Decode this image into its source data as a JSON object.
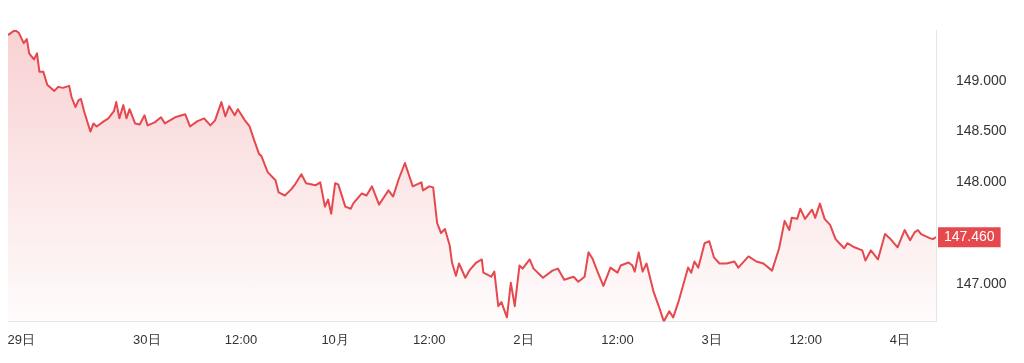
{
  "chart_data": {
    "type": "area",
    "color": "#e5484d",
    "x": [
      "--09-29T06:18",
      "--09-29T07:12",
      "--09-29T07:42",
      "--09-29T08:18",
      "--09-29T08:42",
      "--09-29T09:00",
      "--09-29T09:36",
      "--09-29T10:00",
      "--09-29T10:18",
      "--09-29T10:48",
      "--09-29T11:18",
      "--09-29T12:12",
      "--09-29T12:42",
      "--09-29T13:18",
      "--09-29T14:06",
      "--09-29T14:24",
      "--09-29T14:54",
      "--09-29T15:18",
      "--09-29T15:36",
      "--09-29T16:00",
      "--09-29T16:48",
      "--09-29T17:12",
      "--09-29T17:36",
      "--09-29T18:30",
      "--09-29T19:06",
      "--09-29T19:48",
      "--09-29T20:06",
      "--09-29T20:30",
      "--09-29T21:00",
      "--09-29T21:24",
      "--09-29T21:48",
      "--09-29T22:30",
      "--09-29T23:06",
      "--09-29T23:42",
      "--09-30T00:06",
      "--09-30T01:00",
      "--09-30T01:48",
      "--09-30T02:18",
      "--09-30T03:36",
      "--09-30T04:54",
      "--09-30T05:30",
      "--09-30T06:24",
      "--09-30T07:18",
      "--09-30T08:06",
      "--09-30T08:42",
      "--09-30T09:30",
      "--09-30T10:00",
      "--09-30T10:30",
      "--09-30T11:12",
      "--09-30T11:36",
      "--09-30T12:30",
      "--09-30T13:06",
      "--09-30T13:42",
      "--09-30T14:18",
      "--09-30T14:36",
      "--09-30T15:24",
      "--09-30T16:24",
      "--09-30T16:48",
      "--09-30T17:36",
      "--09-30T18:24",
      "--09-30T18:54",
      "--09-30T19:42",
      "--09-30T20:18",
      "--09-30T21:30",
      "--09-30T22:06",
      "--09-30T22:42",
      "--09-30T23:06",
      "--09-30T23:30",
      "--10-01T00:00",
      "--10-01T00:24",
      "--10-01T01:18",
      "--10-01T02:00",
      "--10-01T02:18",
      "--10-01T03:24",
      "--10-01T04:00",
      "--10-01T04:42",
      "--10-01T05:36",
      "--10-01T06:12",
      "--10-01T06:48",
      "--10-01T07:24",
      "--10-01T08:06",
      "--10-01T08:54",
      "--10-01T09:12",
      "--10-01T09:54",
      "--10-01T11:00",
      "--10-01T11:12",
      "--10-01T12:00",
      "--10-01T12:30",
      "--10-01T13:00",
      "--10-01T13:30",
      "--10-01T14:00",
      "--10-01T14:36",
      "--10-01T14:54",
      "--10-01T15:24",
      "--10-01T15:48",
      "--10-01T16:36",
      "--10-01T17:12",
      "--10-01T18:00",
      "--10-01T18:42",
      "--10-01T18:54",
      "--10-01T19:54",
      "--10-01T20:18",
      "--10-01T20:48",
      "--10-01T21:12",
      "--10-01T21:54",
      "--10-01T22:24",
      "--10-01T22:54",
      "--10-01T23:30",
      "--10-01T23:54",
      "--10-02T00:48",
      "--10-02T01:18",
      "--10-02T02:30",
      "--10-02T03:42",
      "--10-02T04:24",
      "--10-02T05:12",
      "--10-02T06:24",
      "--10-02T07:00",
      "--10-02T07:48",
      "--10-02T08:18",
      "--10-02T08:48",
      "--10-02T09:24",
      "--10-02T10:12",
      "--10-02T11:06",
      "--10-02T12:00",
      "--10-02T12:24",
      "--10-02T13:24",
      "--10-02T13:54",
      "--10-02T14:12",
      "--10-02T14:42",
      "--10-02T15:12",
      "--10-02T15:42",
      "--10-02T16:36",
      "--10-02T17:18",
      "--10-02T17:54",
      "--10-02T18:36",
      "--10-02T19:06",
      "--10-02T19:48",
      "--10-02T21:00",
      "--10-02T21:24",
      "--10-02T21:48",
      "--10-02T22:18",
      "--10-02T23:06",
      "--10-02T23:42",
      "--10-03T00:18",
      "--10-03T01:00",
      "--10-03T01:54",
      "--10-03T02:54",
      "--10-03T03:24",
      "--10-03T04:42",
      "--10-03T05:42",
      "--10-03T06:36",
      "--10-03T07:42",
      "--10-03T08:36",
      "--10-03T09:18",
      "--10-03T09:54",
      "--10-03T10:12",
      "--10-03T10:54",
      "--10-03T11:18",
      "--10-03T11:54",
      "--10-03T12:48",
      "--10-03T13:12",
      "--10-03T13:48",
      "--10-03T14:24",
      "--10-03T15:06",
      "--10-03T15:48",
      "--10-03T16:24",
      "--10-03T16:54",
      "--10-03T17:18",
      "--10-03T18:12",
      "--10-03T19:12",
      "--10-03T19:36",
      "--10-03T20:18",
      "--10-03T21:12",
      "--10-03T22:06",
      "--10-03T22:42",
      "--10-03T23:42",
      "--10-04T00:36",
      "--10-04T01:18",
      "--10-04T01:54",
      "--10-04T02:18",
      "--10-04T02:42",
      "--10-04T03:48",
      "--10-04T04:12",
      "--10-04T04:36"
    ],
    "values": [
      149.45,
      149.5,
      149.47,
      149.37,
      149.41,
      149.27,
      149.21,
      149.27,
      149.09,
      149.09,
      148.96,
      148.9,
      148.94,
      148.93,
      148.95,
      148.84,
      148.74,
      148.81,
      148.82,
      148.7,
      148.5,
      148.58,
      148.55,
      148.6,
      148.63,
      148.7,
      148.79,
      148.63,
      148.76,
      148.63,
      148.72,
      148.58,
      148.57,
      148.66,
      148.56,
      148.59,
      148.64,
      148.58,
      148.64,
      148.67,
      148.55,
      148.6,
      148.63,
      148.56,
      148.61,
      148.79,
      148.65,
      148.75,
      148.66,
      148.72,
      148.61,
      148.55,
      148.41,
      148.28,
      148.26,
      148.1,
      148.02,
      147.9,
      147.87,
      147.93,
      147.98,
      148.08,
      147.99,
      147.97,
      148.0,
      147.76,
      147.83,
      147.69,
      147.99,
      147.98,
      147.76,
      147.74,
      147.79,
      147.89,
      147.87,
      147.96,
      147.78,
      147.85,
      147.92,
      147.86,
      148.03,
      148.19,
      148.12,
      147.96,
      148.0,
      147.92,
      147.96,
      147.95,
      147.6,
      147.5,
      147.54,
      147.38,
      147.21,
      147.08,
      147.2,
      147.06,
      147.14,
      147.21,
      147.24,
      147.11,
      147.07,
      147.12,
      146.78,
      146.82,
      146.67,
      147.01,
      146.78,
      147.18,
      147.15,
      147.24,
      147.15,
      147.06,
      147.13,
      147.15,
      147.04,
      147.07,
      147.02,
      147.07,
      147.31,
      147.25,
      147.13,
      146.98,
      147.16,
      147.11,
      147.18,
      147.21,
      147.18,
      147.12,
      147.31,
      147.12,
      147.2,
      146.92,
      146.77,
      146.63,
      146.73,
      146.67,
      146.83,
      147.16,
      147.11,
      147.22,
      147.16,
      147.4,
      147.42,
      147.26,
      147.2,
      147.2,
      147.22,
      147.16,
      147.27,
      147.22,
      147.2,
      147.13,
      147.35,
      147.62,
      147.53,
      147.65,
      147.64,
      147.74,
      147.64,
      147.73,
      147.65,
      147.79,
      147.64,
      147.58,
      147.44,
      147.39,
      147.35,
      147.4,
      147.36,
      147.33,
      147.23,
      147.33,
      147.24,
      147.49,
      147.45,
      147.36,
      147.53,
      147.43,
      147.51,
      147.53,
      147.49,
      147.45,
      147.44,
      147.46
    ],
    "xlim": [
      "--09-29T06:18",
      "--10-04T04:36"
    ],
    "ylim": [
      146.63,
      149.5
    ],
    "xticks": [
      {
        "value": "--09-29T08:00",
        "label": "29日"
      },
      {
        "value": "--09-30",
        "label": "30日"
      },
      {
        "value": "--09-30T12:00",
        "label": "12:00"
      },
      {
        "value": "--10-01",
        "label": "10月"
      },
      {
        "value": "--10-01T12:00",
        "label": "12:00"
      },
      {
        "value": "--10-02",
        "label": "2日"
      },
      {
        "value": "--10-02T12:00",
        "label": "12:00"
      },
      {
        "value": "--10-03",
        "label": "3日"
      },
      {
        "value": "--10-03T12:00",
        "label": "12:00"
      },
      {
        "value": "--10-04",
        "label": "4日"
      }
    ],
    "yticks": [
      {
        "value": 147,
        "label": "147.000"
      },
      {
        "value": 148,
        "label": "148.000"
      },
      {
        "value": 148.5,
        "label": "148.500"
      },
      {
        "value": 149,
        "label": "149.000"
      }
    ],
    "annotations": [
      {
        "text": "147.460",
        "x": "--10-04T04:36",
        "y": 147.46
      }
    ]
  }
}
